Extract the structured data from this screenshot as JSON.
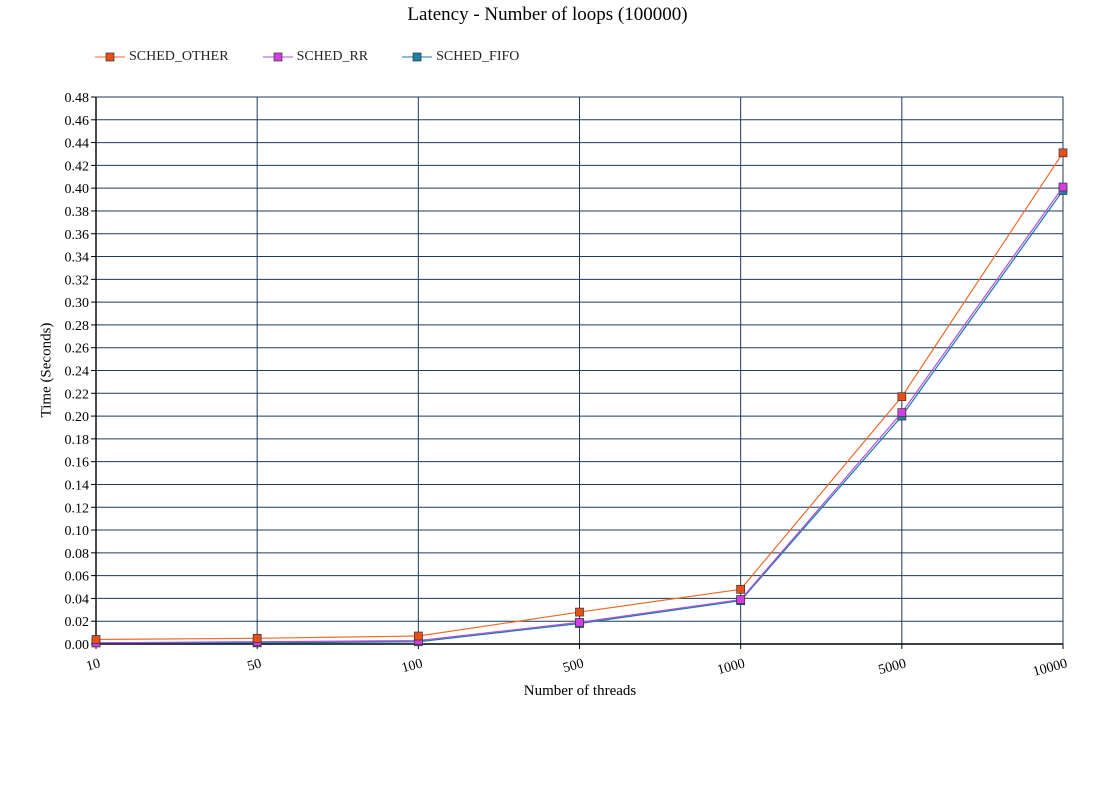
{
  "chart_data": {
    "type": "line",
    "title": "Latency - Number of loops (100000)",
    "xlabel": "Number of threads",
    "ylabel": "Time (Seconds)",
    "categories": [
      "10",
      "50",
      "100",
      "500",
      "1000",
      "5000",
      "10000"
    ],
    "ylim": [
      0,
      0.48
    ],
    "yticks": [
      "0.00",
      "0.02",
      "0.04",
      "0.06",
      "0.08",
      "0.10",
      "0.12",
      "0.14",
      "0.16",
      "0.18",
      "0.20",
      "0.22",
      "0.24",
      "0.26",
      "0.28",
      "0.30",
      "0.32",
      "0.34",
      "0.36",
      "0.38",
      "0.40",
      "0.42",
      "0.44",
      "0.46",
      "0.48"
    ],
    "grid": true,
    "legend_position": "top-left",
    "series": [
      {
        "name": "SCHED_OTHER",
        "color": "#f06a2a",
        "marker_color": "#e8501a",
        "values": [
          0.004,
          0.005,
          0.007,
          0.028,
          0.048,
          0.217,
          0.431
        ]
      },
      {
        "name": "SCHED_RR",
        "color": "#b44cdc",
        "marker_color": "#d23ee0",
        "values": [
          0.001,
          0.002,
          0.003,
          0.019,
          0.039,
          0.203,
          0.401
        ]
      },
      {
        "name": "SCHED_FIFO",
        "color": "#157ba3",
        "marker_color": "#1a83a8",
        "values": [
          0.001,
          0.001,
          0.002,
          0.018,
          0.038,
          0.2,
          0.398
        ]
      }
    ]
  }
}
